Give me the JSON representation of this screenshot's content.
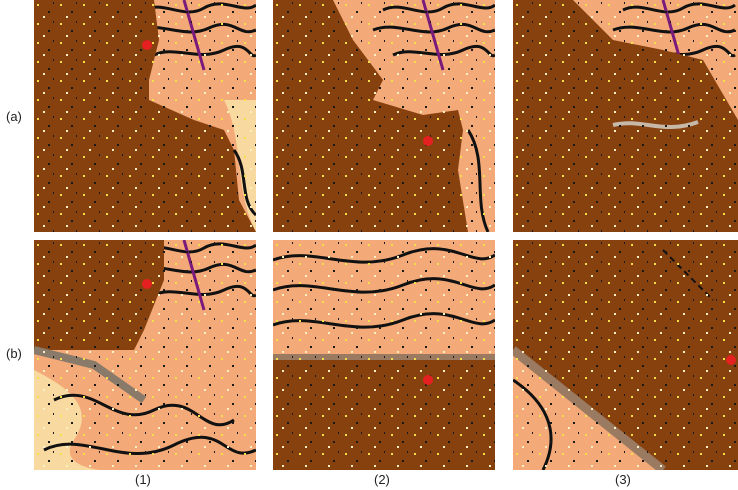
{
  "row_labels": [
    "(a)",
    "(b)"
  ],
  "column_labels": [
    "(1)",
    "(2)",
    "(3)"
  ]
}
